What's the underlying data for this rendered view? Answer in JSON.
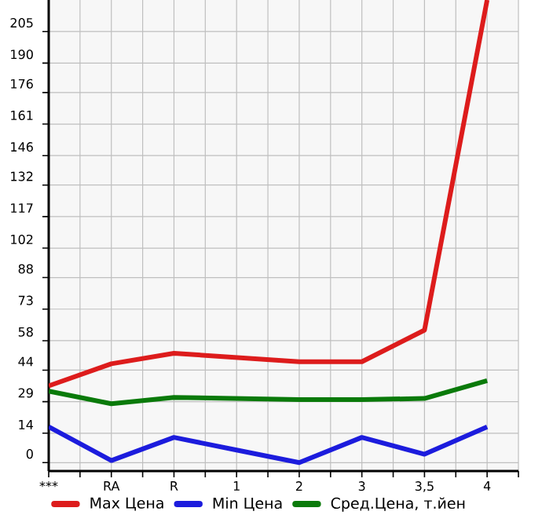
{
  "chart_data": {
    "type": "line",
    "categories": [
      "***",
      "RA",
      "R",
      "1",
      "2",
      "3",
      "3,5",
      "4"
    ],
    "series": [
      {
        "name": "Max Цена",
        "color": "#dd1c1c",
        "values": [
          36.5,
          47,
          52,
          50,
          48,
          48,
          63,
          220
        ]
      },
      {
        "name": "Min Цена",
        "color": "#1c1cdd",
        "values": [
          17,
          1,
          12,
          6,
          0,
          12,
          4,
          17
        ]
      },
      {
        "name": "Сред.Цена, т.йен",
        "color": "#0a7a0a",
        "values": [
          34,
          28,
          31,
          30.5,
          30,
          30,
          30.5,
          39
        ]
      }
    ],
    "ylim": [
      -4,
      220
    ],
    "yticks": [
      0,
      14,
      29,
      44,
      58,
      73,
      88,
      102,
      117,
      132,
      146,
      161,
      176,
      190,
      205
    ],
    "grid": true,
    "legend": "bottom",
    "marker": "none",
    "line_style": "solid"
  }
}
